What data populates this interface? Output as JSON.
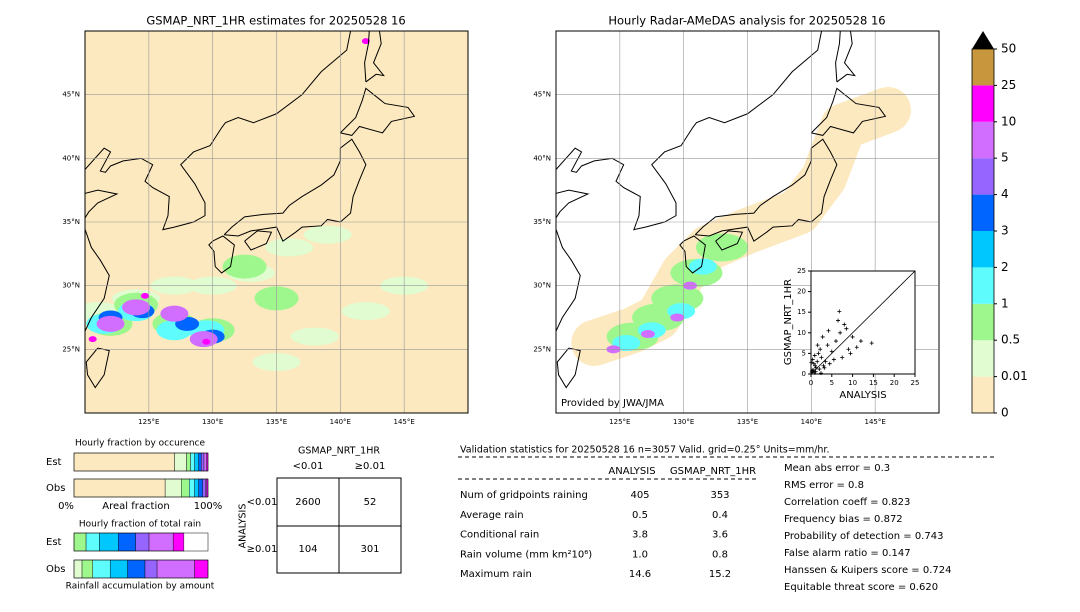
{
  "left_map": {
    "title": "GSMAP_NRT_1HR estimates for 20250528 16",
    "lat_labels": [
      "45°N",
      "40°N",
      "35°N",
      "30°N",
      "25°N"
    ],
    "lon_labels": [
      "125°E",
      "130°E",
      "135°E",
      "140°E",
      "145°E"
    ]
  },
  "right_map": {
    "title": "Hourly Radar-AMeDAS analysis for 20250528 16",
    "lat_labels": [
      "45°N",
      "40°N",
      "35°N",
      "30°N",
      "25°N"
    ],
    "lon_labels": [
      "125°E",
      "130°E",
      "135°E",
      "140°E",
      "145°E"
    ],
    "credit": "Provided by JWA/JMA",
    "inset": {
      "type": "scatter",
      "xlabel": "ANALYSIS",
      "ylabel": "GSMAP_NRT_1HR",
      "xlim": [
        0,
        25
      ],
      "ylim": [
        0,
        25
      ],
      "xticks": [
        0,
        5,
        10,
        15,
        20,
        25
      ],
      "yticks": [
        0,
        5,
        10,
        15,
        20,
        25
      ],
      "x": [
        0.2,
        0.5,
        0.8,
        1.0,
        1.2,
        1.5,
        0.3,
        0.7,
        2.0,
        2.5,
        3.0,
        1.8,
        0.4,
        1.1,
        2.2,
        3.5,
        4.0,
        5.0,
        4.5,
        6.0,
        7.0,
        8.0,
        9.0,
        10.0,
        6.5,
        7.5,
        8.5,
        12.0,
        14.6,
        3.2,
        2.8,
        5.5,
        0.9,
        1.6,
        4.2,
        6.8,
        9.5,
        11.0,
        0.1,
        2.4
      ],
      "y": [
        0.5,
        1.0,
        0.3,
        2.0,
        1.5,
        3.0,
        0.8,
        2.5,
        1.2,
        4.0,
        2.0,
        5.0,
        3.5,
        0.6,
        6.0,
        3.0,
        7.0,
        5.5,
        2.5,
        8.0,
        10.0,
        12.0,
        6.0,
        9.0,
        13.0,
        4.0,
        11.0,
        8.0,
        7.5,
        1.5,
        9.0,
        3.5,
        4.5,
        7.0,
        10.5,
        15.2,
        5.0,
        6.5,
        2.8,
        0.2
      ]
    }
  },
  "colorbar": {
    "labels": [
      "0",
      "0.01",
      "0.5",
      "1",
      "2",
      "3",
      "4",
      "5",
      "10",
      "25",
      "50"
    ],
    "colors": [
      "#fde9bf",
      "#e0fcd0",
      "#9ef78c",
      "#5efcfc",
      "#00c8ff",
      "#0064ff",
      "#9664ff",
      "#d26eff",
      "#ff00ff",
      "#c8963c"
    ]
  },
  "occurrence": {
    "title": "Hourly fraction by occurence",
    "rows": [
      "Est",
      "Obs"
    ],
    "axis_labels": [
      "0%",
      "Areal fraction",
      "100%"
    ],
    "est": [
      0.75,
      0.09,
      0.03,
      0.03,
      0.03,
      0.02,
      0.02,
      0.02,
      0.01
    ],
    "obs": [
      0.68,
      0.12,
      0.06,
      0.04,
      0.03,
      0.03,
      0.02,
      0.01,
      0.01
    ]
  },
  "total_rain": {
    "title": "Hourly fraction of total rain",
    "rows": [
      "Est",
      "Obs"
    ],
    "xlabel": "Rainfall accumulation by amount",
    "est": [
      0,
      0.09,
      0.1,
      0.14,
      0.13,
      0.1,
      0.18,
      0.08
    ],
    "obs": [
      0.06,
      0.08,
      0.13,
      0.13,
      0.13,
      0.09,
      0.28,
      0.1
    ]
  },
  "contingency": {
    "title": "GSMAP_NRT_1HR",
    "col_labels": [
      "<0.01",
      "≥0.01"
    ],
    "row_title": "ANALYSIS",
    "row_labels": [
      "<0.01",
      "≥0.01"
    ],
    "cells": [
      [
        "2600",
        "52"
      ],
      [
        "104",
        "301"
      ]
    ]
  },
  "validation": {
    "header": "Validation statistics for 20250528 16  n=3057 Valid. grid=0.25° Units=mm/hr.",
    "columns": [
      "ANALYSIS",
      "GSMAP_NRT_1HR"
    ],
    "rows": [
      [
        "Num of gridpoints raining",
        "405",
        "353"
      ],
      [
        "Average rain",
        "0.5",
        "0.4"
      ],
      [
        "Conditional rain",
        "3.8",
        "3.6"
      ],
      [
        "Rain volume (mm km²10⁶)",
        "1.0",
        "0.8"
      ],
      [
        "Maximum rain",
        "14.6",
        "15.2"
      ]
    ],
    "scores": [
      "Mean abs error =    0.3",
      "RMS error =    0.8",
      "Correlation coeff =  0.823",
      "Frequency bias =  0.872",
      "Probability of detection =  0.743",
      "False alarm ratio =  0.147",
      "Hanssen & Kuipers score =  0.724",
      "Equitable threat score =  0.620"
    ]
  }
}
